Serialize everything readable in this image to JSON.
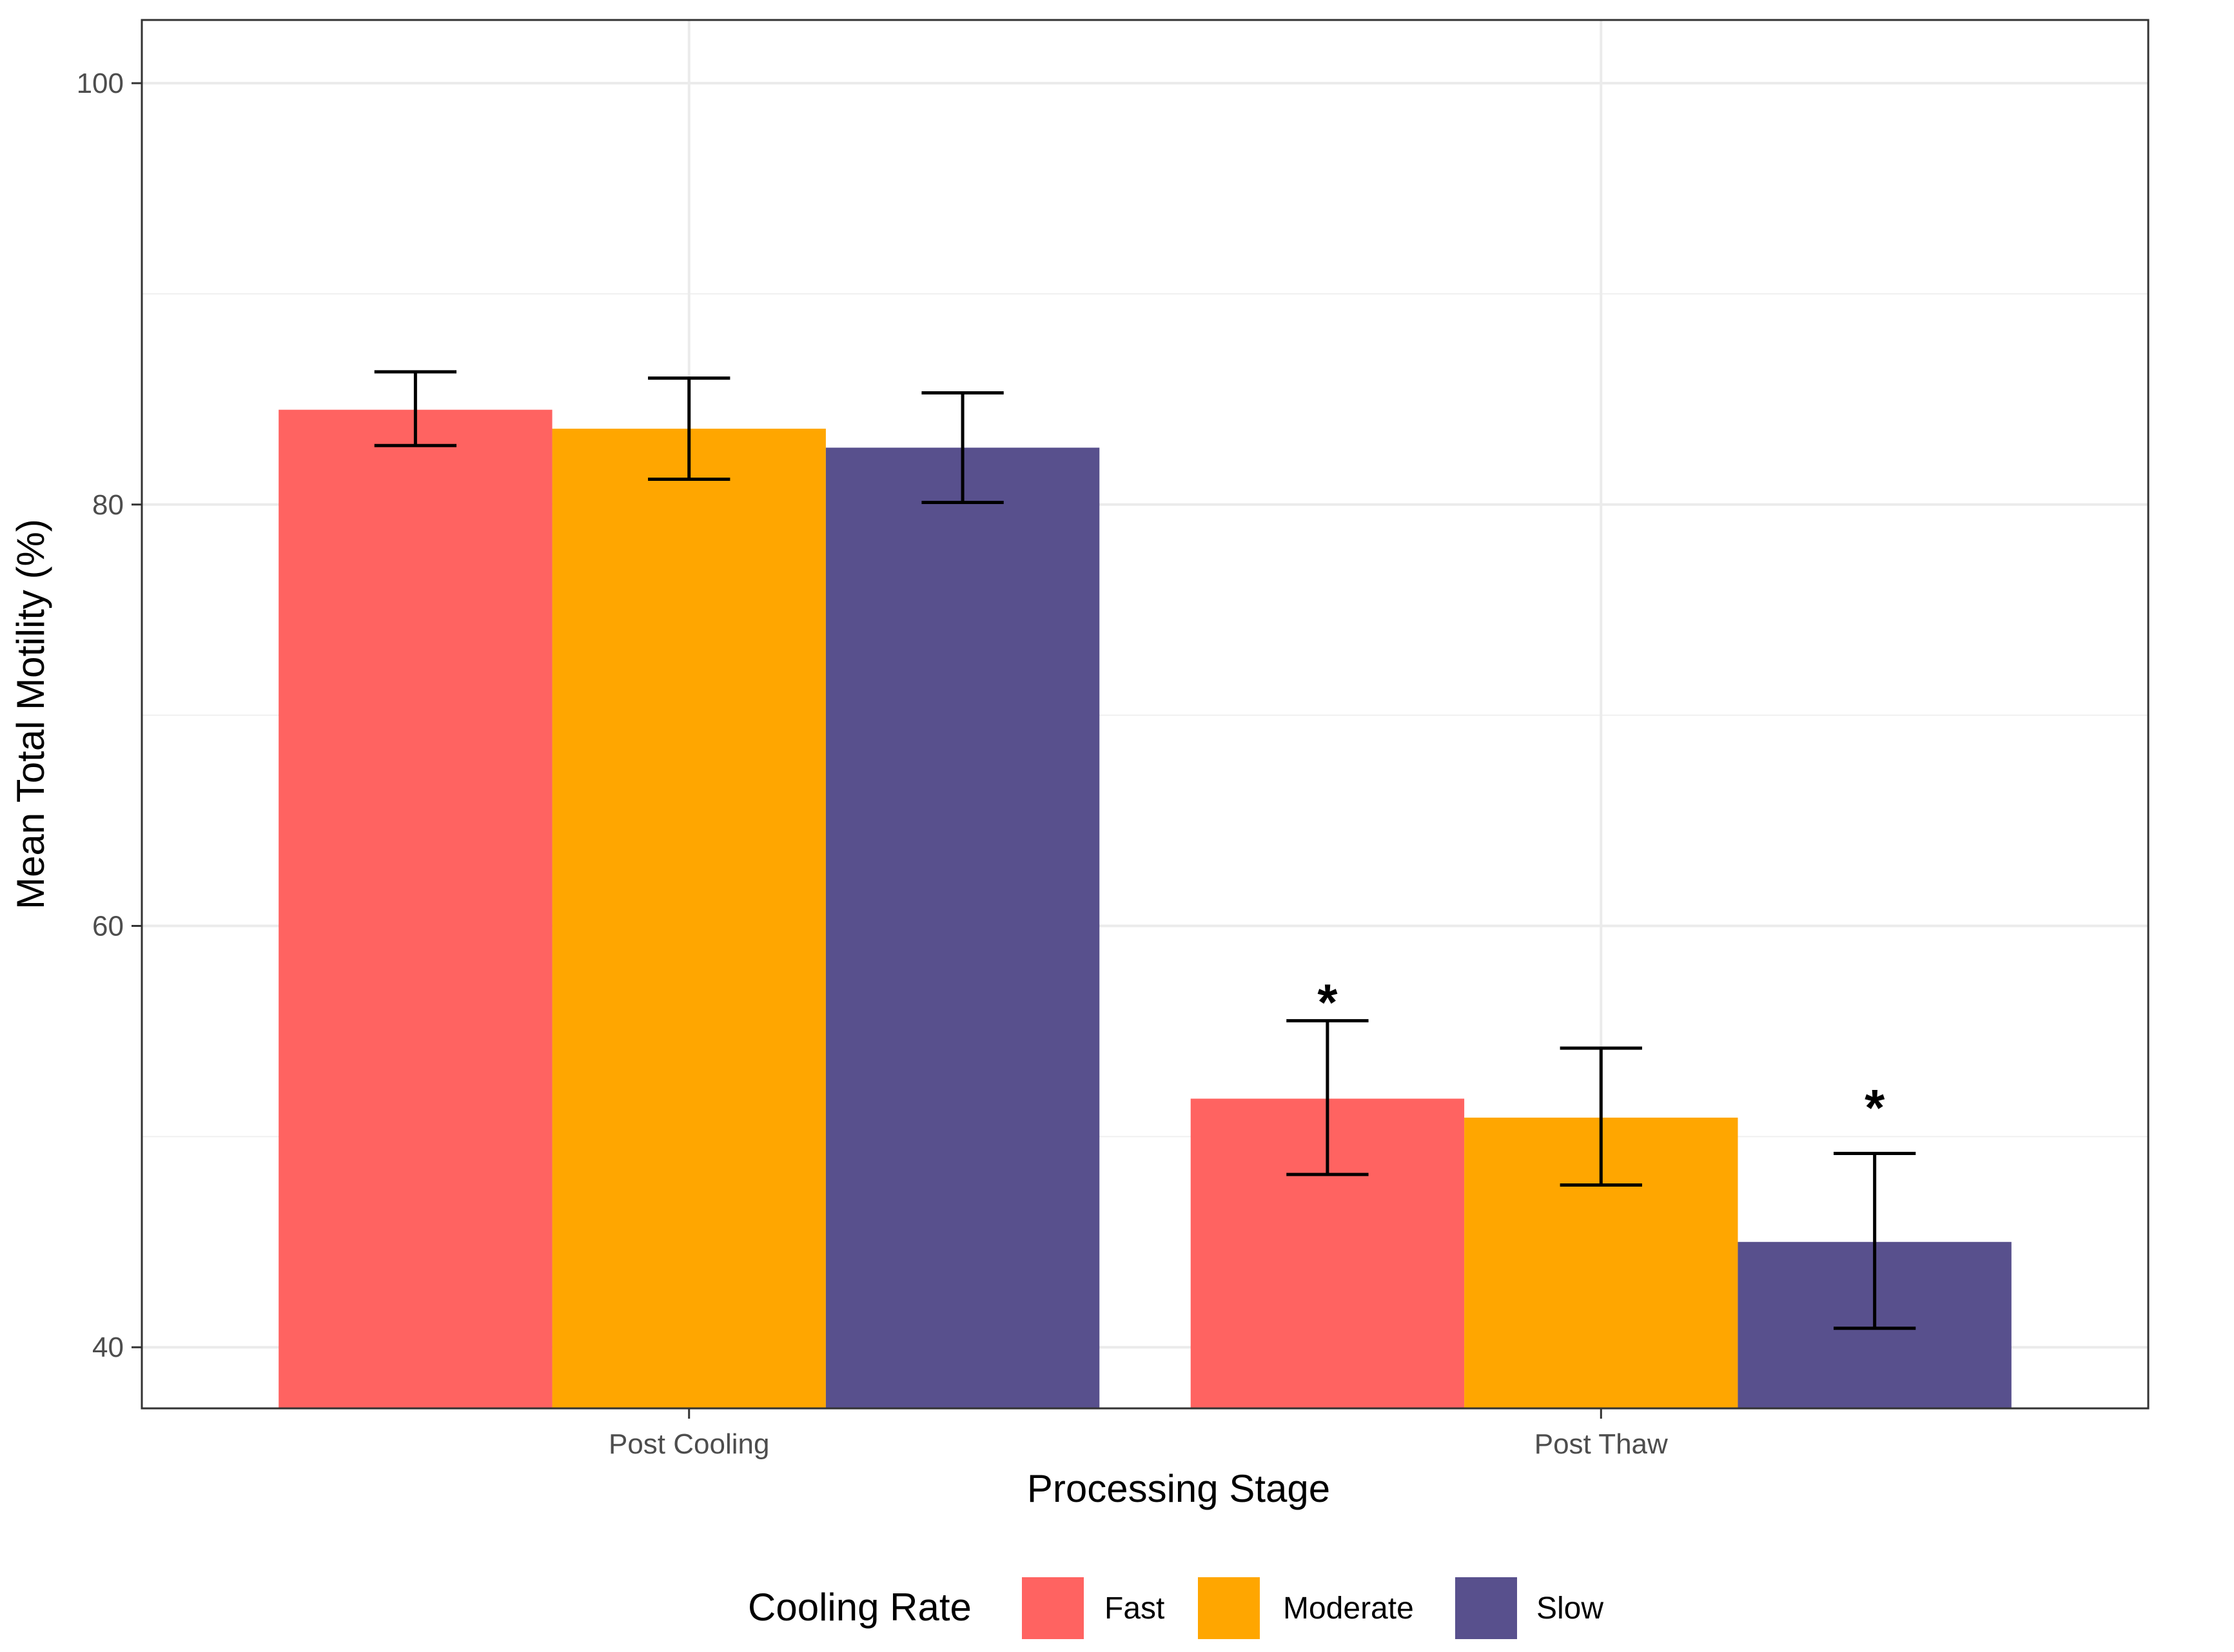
{
  "chart_data": {
    "type": "bar",
    "title": "",
    "xlabel": "Processing Stage",
    "ylabel": "Mean Total Motility (%)",
    "ylim": [
      37.1,
      103.0
    ],
    "yticks": [
      40,
      60,
      80,
      100
    ],
    "ytick_labels": [
      "40",
      "60",
      "80",
      "100"
    ],
    "categories": [
      "Post Cooling",
      "Post Thaw"
    ],
    "series": [
      {
        "name": "Fast",
        "color": "#FF6361",
        "values": [
          84.5,
          51.8
        ],
        "err_low": [
          82.8,
          48.2
        ],
        "err_high": [
          86.3,
          55.5
        ]
      },
      {
        "name": "Moderate",
        "color": "#FFA600",
        "values": [
          83.6,
          50.9
        ],
        "err_low": [
          81.2,
          47.7
        ],
        "err_high": [
          86.0,
          54.2
        ]
      },
      {
        "name": "Slow",
        "color": "#58508D",
        "values": [
          82.7,
          45.0
        ],
        "err_low": [
          80.1,
          40.9
        ],
        "err_high": [
          85.3,
          49.2
        ]
      }
    ],
    "annotations": [
      {
        "text": "*",
        "category": "Post Thaw",
        "series": "Fast",
        "y": 57.0
      },
      {
        "text": "*",
        "category": "Post Thaw",
        "series": "Slow",
        "y": 52.0
      }
    ],
    "grid": true,
    "legend": {
      "title": "Cooling Rate",
      "position": "bottom"
    }
  }
}
